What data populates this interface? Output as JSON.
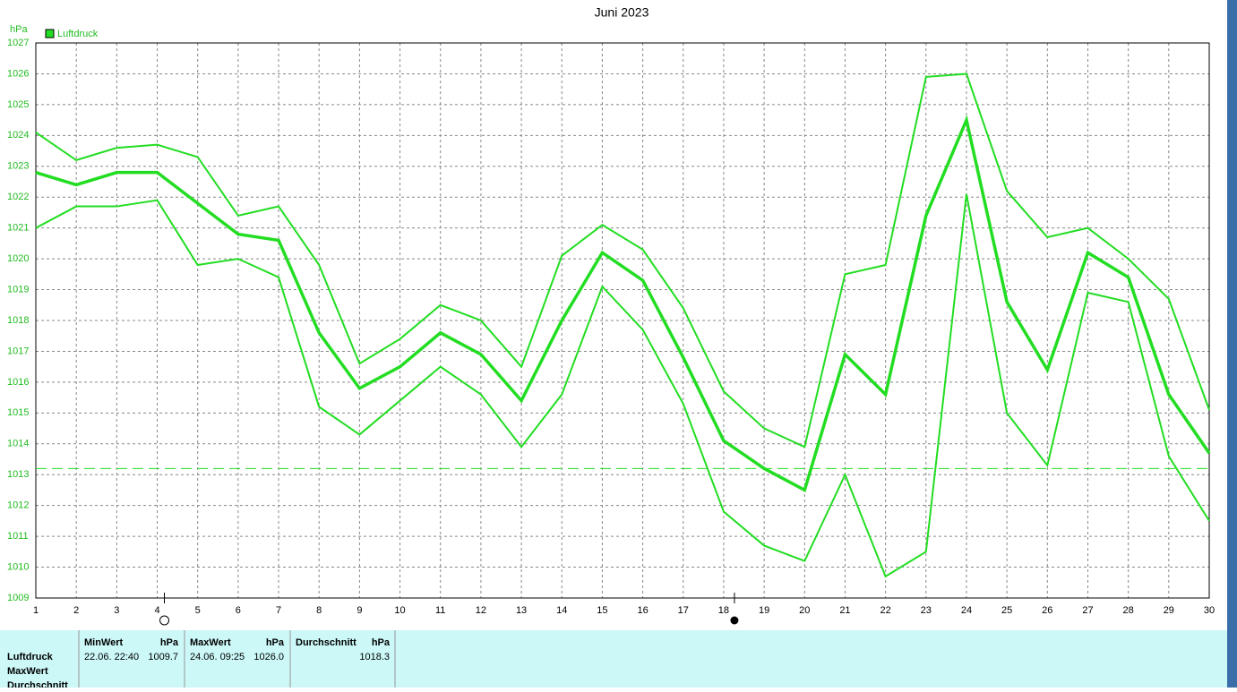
{
  "chart_data": {
    "type": "line",
    "title": "Juni 2023",
    "y_unit": "hPa",
    "x": [
      1,
      2,
      3,
      4,
      5,
      6,
      7,
      8,
      9,
      10,
      11,
      12,
      13,
      14,
      15,
      16,
      17,
      18,
      19,
      20,
      21,
      22,
      23,
      24,
      25,
      26,
      27,
      28,
      29,
      30
    ],
    "xlim": [
      1,
      30
    ],
    "ylim": [
      1009,
      1027
    ],
    "yticks": [
      1009,
      1010,
      1011,
      1012,
      1013,
      1014,
      1015,
      1016,
      1017,
      1018,
      1019,
      1020,
      1021,
      1022,
      1023,
      1024,
      1025,
      1026,
      1027
    ],
    "grid": true,
    "series": [
      {
        "name": "Luftdruck",
        "color": "#22dd22",
        "values": [
          1022.8,
          1022.4,
          1022.8,
          1022.8,
          1021.8,
          1020.8,
          1020.6,
          1017.6,
          1015.8,
          1016.5,
          1017.6,
          1016.9,
          1015.4,
          1018.0,
          1020.2,
          1019.3,
          1016.8,
          1014.1,
          1013.2,
          1012.5,
          1016.9,
          1015.6,
          1021.4,
          1024.5,
          1018.6,
          1016.4,
          1020.2,
          1019.4,
          1015.6,
          1013.7
        ],
        "max_values": [
          1024.1,
          1023.2,
          1023.6,
          1023.7,
          1023.3,
          1021.4,
          1021.7,
          1019.8,
          1016.6,
          1017.4,
          1018.5,
          1018.0,
          1016.5,
          1020.1,
          1021.1,
          1020.3,
          1018.4,
          1015.7,
          1014.5,
          1013.9,
          1019.5,
          1019.8,
          1025.9,
          1026.0,
          1022.2,
          1020.7,
          1021.0,
          1020.0,
          1018.7,
          1015.1
        ],
        "min_values": [
          1021.0,
          1021.7,
          1021.7,
          1021.9,
          1019.8,
          1020.0,
          1019.4,
          1015.2,
          1014.3,
          1015.4,
          1016.5,
          1015.6,
          1013.9,
          1015.6,
          1019.1,
          1017.7,
          1015.3,
          1011.8,
          1010.7,
          1010.2,
          1013.0,
          1009.7,
          1010.5,
          1022.1,
          1015.0,
          1013.3,
          1018.9,
          1018.6,
          1013.6,
          1011.5
        ]
      }
    ],
    "reference_line": 1013.2,
    "full_moon_day": 4,
    "new_moon_day": 18
  },
  "table": {
    "row_labels": [
      "Luftdruck",
      "MaxWert",
      "Durchschnitt"
    ],
    "columns": [
      {
        "header": "MinWert",
        "unit": "hPa",
        "time": "22.06.  22:40",
        "value": "1009.7"
      },
      {
        "header": "MaxWert",
        "unit": "hPa",
        "time": "24.06.  09:25",
        "value": "1026.0"
      },
      {
        "header": "Durchschnitt",
        "unit": "hPa",
        "value": "1018.3"
      }
    ]
  }
}
